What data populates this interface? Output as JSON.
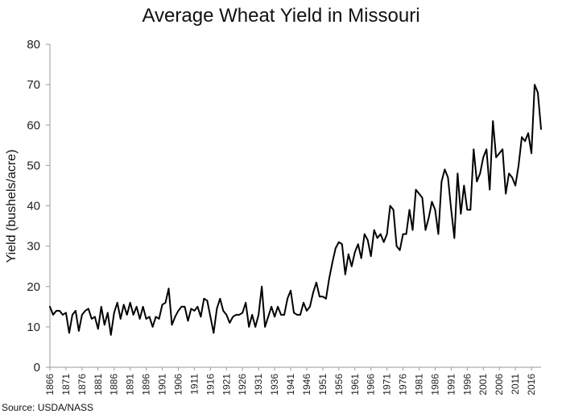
{
  "chart_data": {
    "type": "line",
    "title": "Average Wheat Yield in Missouri",
    "xlabel": "",
    "ylabel": "Yield (bushels/acre)",
    "source": "Source: USDA/NASS",
    "ylim": [
      0,
      80
    ],
    "yticks": [
      0,
      10,
      20,
      30,
      40,
      50,
      60,
      70,
      80
    ],
    "xlim": [
      1866,
      2019
    ],
    "xticks": [
      1866,
      1871,
      1876,
      1881,
      1886,
      1891,
      1896,
      1901,
      1906,
      1911,
      1916,
      1921,
      1926,
      1931,
      1936,
      1941,
      1946,
      1951,
      1956,
      1961,
      1966,
      1971,
      1976,
      1981,
      1986,
      1991,
      1996,
      2001,
      2006,
      2011,
      2016
    ],
    "grid": false,
    "legend": "none",
    "line_color": "#000000",
    "series": [
      {
        "start_year": 1866,
        "values": [
          15,
          13,
          14,
          14,
          13,
          13.5,
          8.5,
          13,
          14,
          9,
          13,
          14,
          14.5,
          12,
          12.5,
          9.5,
          15,
          10.5,
          13.5,
          8,
          13.5,
          16,
          12,
          15.5,
          13,
          16,
          13,
          15,
          12,
          15,
          12,
          12.5,
          10,
          12.5,
          12,
          15.5,
          16,
          19.5,
          10.5,
          12.5,
          14,
          15,
          15,
          11.5,
          14.5,
          14,
          15,
          12.5,
          17,
          16.5,
          12.5,
          8.5,
          14.5,
          17,
          14,
          13,
          11,
          12.5,
          13,
          13,
          13.5,
          16,
          10,
          13,
          10,
          13,
          20,
          10,
          12.5,
          15,
          12.5,
          15,
          13,
          13,
          17,
          19,
          13.5,
          13,
          13,
          16,
          14,
          15,
          18.5,
          21,
          17.5,
          17.5,
          17,
          22,
          26,
          29.5,
          31,
          30.5,
          23,
          28,
          25,
          28.5,
          30.5,
          27,
          33,
          31.5,
          27.5,
          34,
          32,
          33,
          31,
          33,
          40,
          39,
          30,
          29,
          33,
          33,
          39,
          34,
          44,
          43,
          42,
          34,
          37,
          41,
          39,
          33,
          46,
          49,
          47,
          39,
          32,
          48,
          38,
          45,
          39,
          39,
          54,
          46,
          48,
          52,
          54,
          44,
          61,
          52,
          53,
          54,
          43,
          48,
          47,
          45,
          50,
          57,
          56,
          58,
          53,
          70,
          68,
          59
        ]
      }
    ]
  }
}
